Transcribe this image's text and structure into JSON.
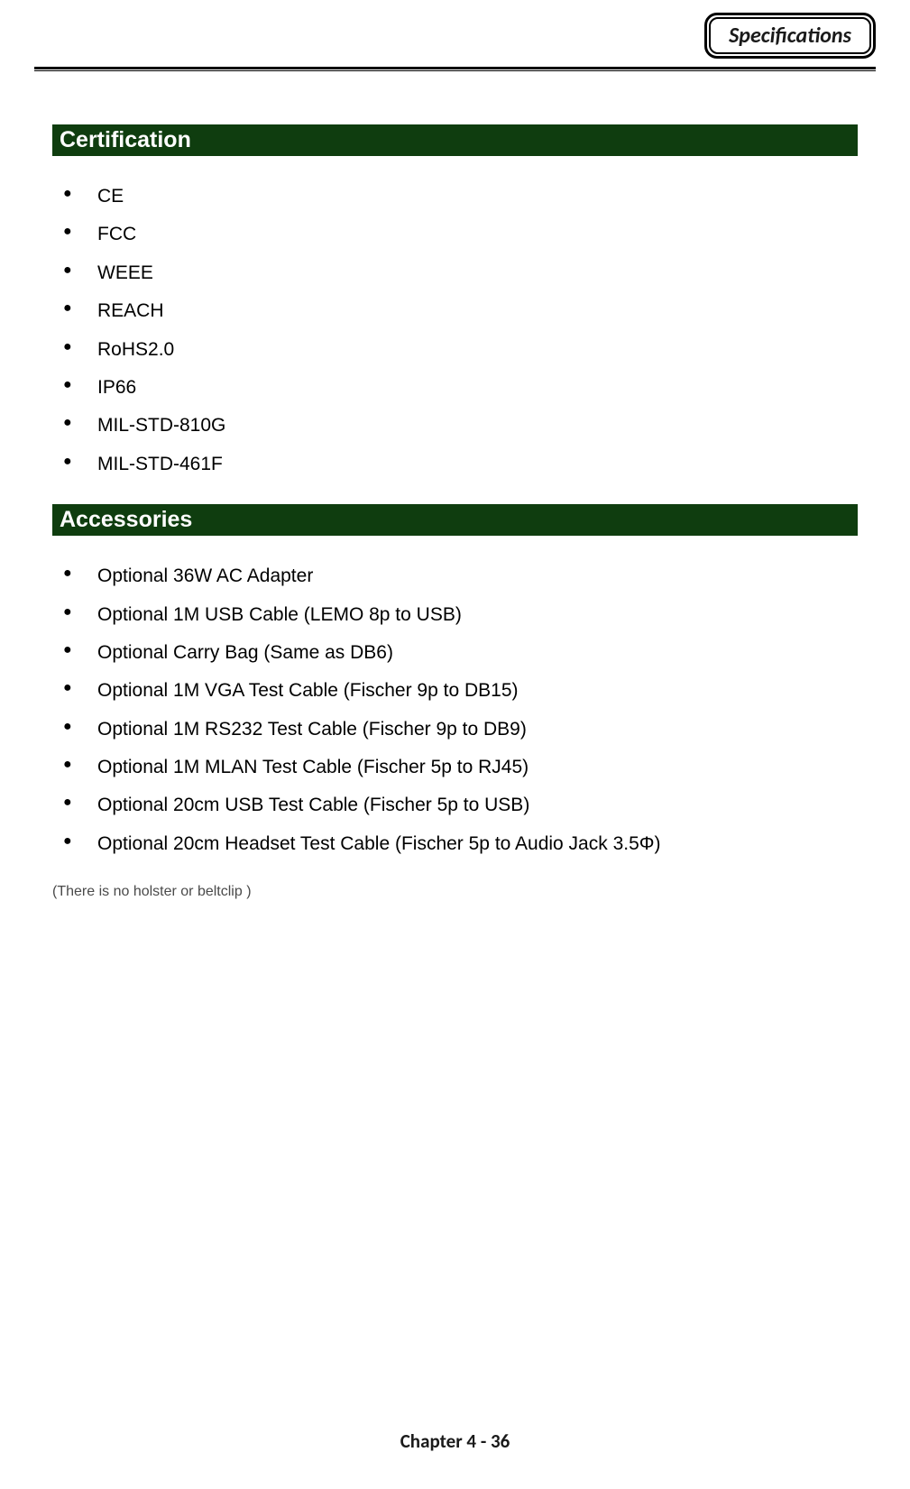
{
  "header": {
    "badge_text": "Specifications"
  },
  "sections": {
    "certification": {
      "title": "Certification",
      "items": [
        "CE",
        "FCC",
        "WEEE",
        "REACH",
        "RoHS2.0",
        "IP66",
        "MIL-STD-810G",
        "MIL-STD-461F"
      ]
    },
    "accessories": {
      "title": "Accessories",
      "items": [
        "Optional 36W AC Adapter",
        "Optional 1M USB Cable (LEMO 8p to USB)",
        "Optional Carry Bag (Same as DB6)",
        "Optional 1M VGA Test Cable (Fischer 9p to DB15)",
        "Optional 1M RS232 Test Cable (Fischer 9p to DB9)",
        "Optional 1M MLAN Test Cable (Fischer 5p to RJ45)",
        "Optional 20cm USB Test Cable (Fischer 5p to USB)",
        "Optional 20cm Headset Test Cable (Fischer 5p to Audio Jack 3.5Φ)"
      ],
      "note": "(There is no holster or  beltclip )"
    }
  },
  "footer": {
    "text": "Chapter 4 - 36"
  },
  "styles": {
    "section_header_bg": "#0f3d0f",
    "section_header_color": "#ffffff",
    "page_bg": "#ffffff",
    "text_color": "#000000",
    "note_color": "#4a4a4a",
    "badge_border_color": "#000000",
    "rule_color": "#000000",
    "body_fontsize": 21,
    "header_fontsize": 25,
    "note_fontsize": 16,
    "footer_fontsize": 21
  }
}
